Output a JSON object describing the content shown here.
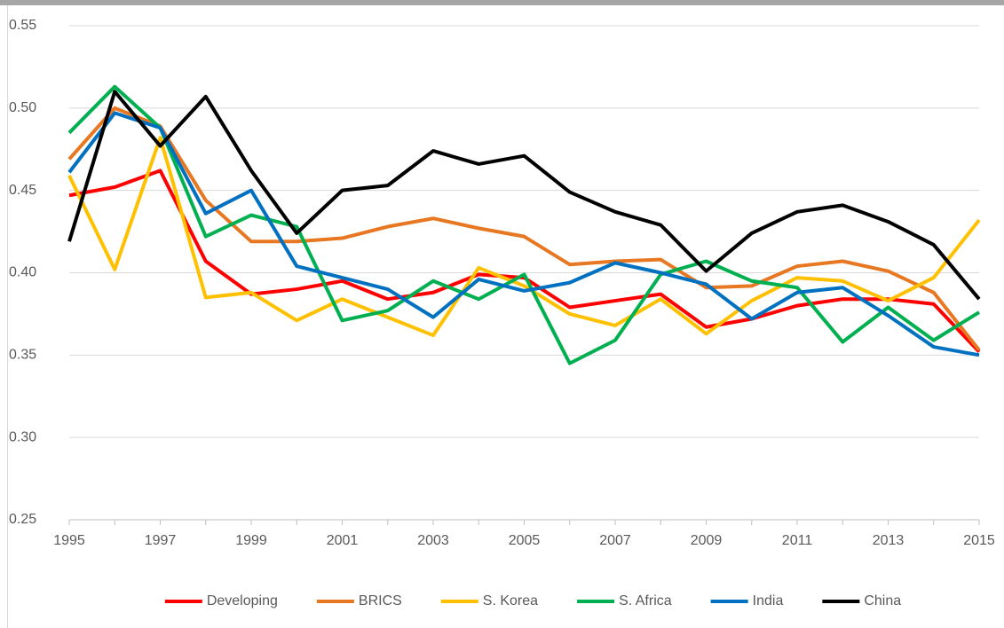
{
  "chart_data": {
    "type": "line",
    "x": [
      1995,
      1996,
      1997,
      1998,
      1999,
      2000,
      2001,
      2002,
      2003,
      2004,
      2005,
      2006,
      2007,
      2008,
      2009,
      2010,
      2011,
      2012,
      2013,
      2014,
      2015
    ],
    "xlim": [
      1995,
      2015
    ],
    "xticks": [
      1995,
      1997,
      1999,
      2001,
      2003,
      2005,
      2007,
      2009,
      2011,
      2013,
      2015
    ],
    "ylim": [
      0.25,
      0.55
    ],
    "yticks": [
      0.25,
      {
        "value": 0.3,
        "label": "0.30"
      },
      0.35,
      {
        "value": 0.4,
        "label": "0.40"
      },
      0.45,
      {
        "value": 0.5,
        "label": "0.50"
      },
      0.55
    ],
    "grid": true,
    "legend": "bottom",
    "series": [
      {
        "name": "Developing",
        "color": "#ff0000",
        "values": [
          0.447,
          0.452,
          0.462,
          0.407,
          0.387,
          0.39,
          0.395,
          0.384,
          0.388,
          0.399,
          0.397,
          0.379,
          0.383,
          0.387,
          0.367,
          0.372,
          0.38,
          0.384,
          0.384,
          0.381,
          0.352
        ]
      },
      {
        "name": "BRICS",
        "color": "#e87722",
        "values": [
          0.469,
          0.5,
          0.489,
          0.444,
          0.419,
          0.419,
          0.421,
          0.428,
          0.433,
          0.427,
          0.422,
          0.405,
          0.407,
          0.408,
          0.391,
          0.392,
          0.404,
          0.407,
          0.401,
          0.388,
          0.353
        ]
      },
      {
        "name": "S. Korea",
        "color": "#ffc000",
        "values": [
          0.459,
          0.402,
          0.482,
          0.385,
          0.388,
          0.371,
          0.384,
          0.373,
          0.362,
          0.403,
          0.392,
          0.375,
          0.368,
          0.384,
          0.363,
          0.383,
          0.397,
          0.395,
          0.383,
          0.397,
          0.432
        ]
      },
      {
        "name": "S. Africa",
        "color": "#00b050",
        "values": [
          0.485,
          0.513,
          0.488,
          0.422,
          0.435,
          0.428,
          0.371,
          0.377,
          0.395,
          0.384,
          0.399,
          0.345,
          0.359,
          0.399,
          0.407,
          0.395,
          0.391,
          0.358,
          0.379,
          0.359,
          0.376
        ]
      },
      {
        "name": "India",
        "color": "#0070c0",
        "values": [
          0.461,
          0.497,
          0.488,
          0.436,
          0.45,
          0.404,
          0.397,
          0.39,
          0.373,
          0.396,
          0.389,
          0.394,
          0.406,
          0.4,
          0.393,
          0.372,
          0.388,
          0.391,
          0.374,
          0.355,
          0.35
        ]
      },
      {
        "name": "China",
        "color": "#000000",
        "values": [
          0.419,
          0.51,
          0.477,
          0.507,
          0.462,
          0.424,
          0.45,
          0.453,
          0.474,
          0.466,
          0.471,
          0.449,
          0.437,
          0.429,
          0.401,
          0.424,
          0.437,
          0.441,
          0.431,
          0.417,
          0.384
        ]
      }
    ]
  }
}
